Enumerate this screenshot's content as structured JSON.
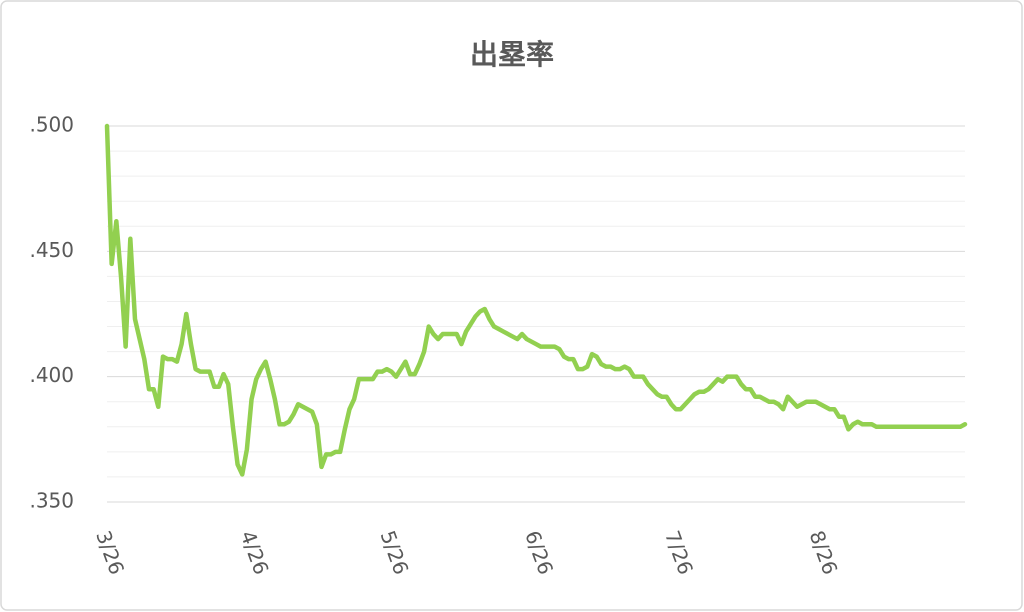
{
  "chart_data": {
    "type": "line",
    "title": "出塁率",
    "categories": [
      "3/26",
      null,
      null,
      null,
      null,
      null,
      null,
      null,
      null,
      null,
      null,
      null,
      null,
      null,
      null,
      null,
      null,
      null,
      null,
      null,
      null,
      null,
      null,
      null,
      null,
      null,
      null,
      null,
      null,
      null,
      null,
      "4/26",
      null,
      null,
      null,
      null,
      null,
      null,
      null,
      null,
      null,
      null,
      null,
      null,
      null,
      null,
      null,
      null,
      null,
      null,
      null,
      null,
      null,
      null,
      null,
      null,
      null,
      null,
      null,
      null,
      null,
      "5/26",
      null,
      null,
      null,
      null,
      null,
      null,
      null,
      null,
      null,
      null,
      null,
      null,
      null,
      null,
      null,
      null,
      null,
      null,
      null,
      null,
      null,
      null,
      null,
      null,
      null,
      null,
      null,
      null,
      null,
      null,
      "6/26",
      null,
      null,
      null,
      null,
      null,
      null,
      null,
      null,
      null,
      null,
      null,
      null,
      null,
      null,
      null,
      null,
      null,
      null,
      null,
      null,
      null,
      null,
      null,
      null,
      null,
      null,
      null,
      null,
      null,
      "7/26",
      null,
      null,
      null,
      null,
      null,
      null,
      null,
      null,
      null,
      null,
      null,
      null,
      null,
      null,
      null,
      null,
      null,
      null,
      null,
      null,
      null,
      null,
      null,
      null,
      null,
      null,
      null,
      null,
      null,
      null,
      "8/26",
      null,
      null,
      null,
      null,
      null,
      null,
      null,
      null,
      null,
      null,
      null,
      null,
      null,
      null,
      null,
      null,
      null,
      null,
      null,
      null,
      null,
      null,
      null,
      null,
      null,
      null,
      null,
      null,
      null,
      null,
      null
    ],
    "values": [
      0.5,
      0.445,
      0.462,
      0.44,
      0.412,
      0.455,
      0.423,
      0.415,
      0.407,
      0.395,
      0.395,
      0.388,
      0.408,
      0.407,
      0.407,
      0.406,
      0.413,
      0.425,
      0.413,
      0.403,
      0.402,
      0.402,
      0.402,
      0.396,
      0.396,
      0.401,
      0.397,
      0.38,
      0.365,
      0.361,
      0.371,
      0.391,
      0.399,
      0.403,
      0.406,
      0.399,
      0.391,
      0.381,
      0.381,
      0.382,
      0.385,
      0.389,
      0.388,
      0.387,
      0.386,
      0.381,
      0.364,
      0.369,
      0.369,
      0.37,
      0.37,
      0.379,
      0.387,
      0.391,
      0.399,
      0.399,
      0.399,
      0.399,
      0.402,
      0.402,
      0.403,
      0.402,
      0.4,
      0.403,
      0.406,
      0.401,
      0.401,
      0.405,
      0.41,
      0.42,
      0.417,
      0.415,
      0.417,
      0.417,
      0.417,
      0.417,
      0.413,
      0.418,
      0.421,
      0.424,
      0.426,
      0.427,
      0.423,
      0.42,
      0.419,
      0.418,
      0.417,
      0.416,
      0.415,
      0.417,
      0.415,
      0.414,
      0.413,
      0.412,
      0.412,
      0.412,
      0.412,
      0.411,
      0.408,
      0.407,
      0.407,
      0.403,
      0.403,
      0.404,
      0.409,
      0.408,
      0.405,
      0.404,
      0.404,
      0.403,
      0.403,
      0.404,
      0.403,
      0.4,
      0.4,
      0.4,
      0.397,
      0.395,
      0.393,
      0.392,
      0.392,
      0.389,
      0.387,
      0.387,
      0.389,
      0.391,
      0.393,
      0.394,
      0.394,
      0.395,
      0.397,
      0.399,
      0.398,
      0.4,
      0.4,
      0.4,
      0.397,
      0.395,
      0.395,
      0.392,
      0.392,
      0.391,
      0.39,
      0.39,
      0.389,
      0.387,
      0.392,
      0.39,
      0.388,
      0.389,
      0.39,
      0.39,
      0.39,
      0.389,
      0.388,
      0.387,
      0.387,
      0.384,
      0.384,
      0.379,
      0.381,
      0.382,
      0.381,
      0.381,
      0.381,
      0.38,
      0.38,
      0.38,
      0.38,
      0.38,
      0.38,
      0.38,
      0.38,
      0.38,
      0.38,
      0.38,
      0.38,
      0.38,
      0.38,
      0.38,
      0.38,
      0.38,
      0.38,
      0.38,
      0.381
    ],
    "color": "#92d050",
    "ylim": [
      0.35,
      0.5
    ],
    "yticks": [
      {
        "value": 0.35,
        "label": ".350"
      },
      {
        "value": 0.4,
        "label": ".400"
      },
      {
        "value": 0.45,
        "label": ".450"
      },
      {
        "value": 0.5,
        "label": ".500"
      }
    ],
    "minor_yticks": [
      0.36,
      0.37,
      0.38,
      0.39,
      0.41,
      0.42,
      0.43,
      0.44,
      0.46,
      0.47,
      0.48,
      0.49
    ],
    "grid": true
  }
}
